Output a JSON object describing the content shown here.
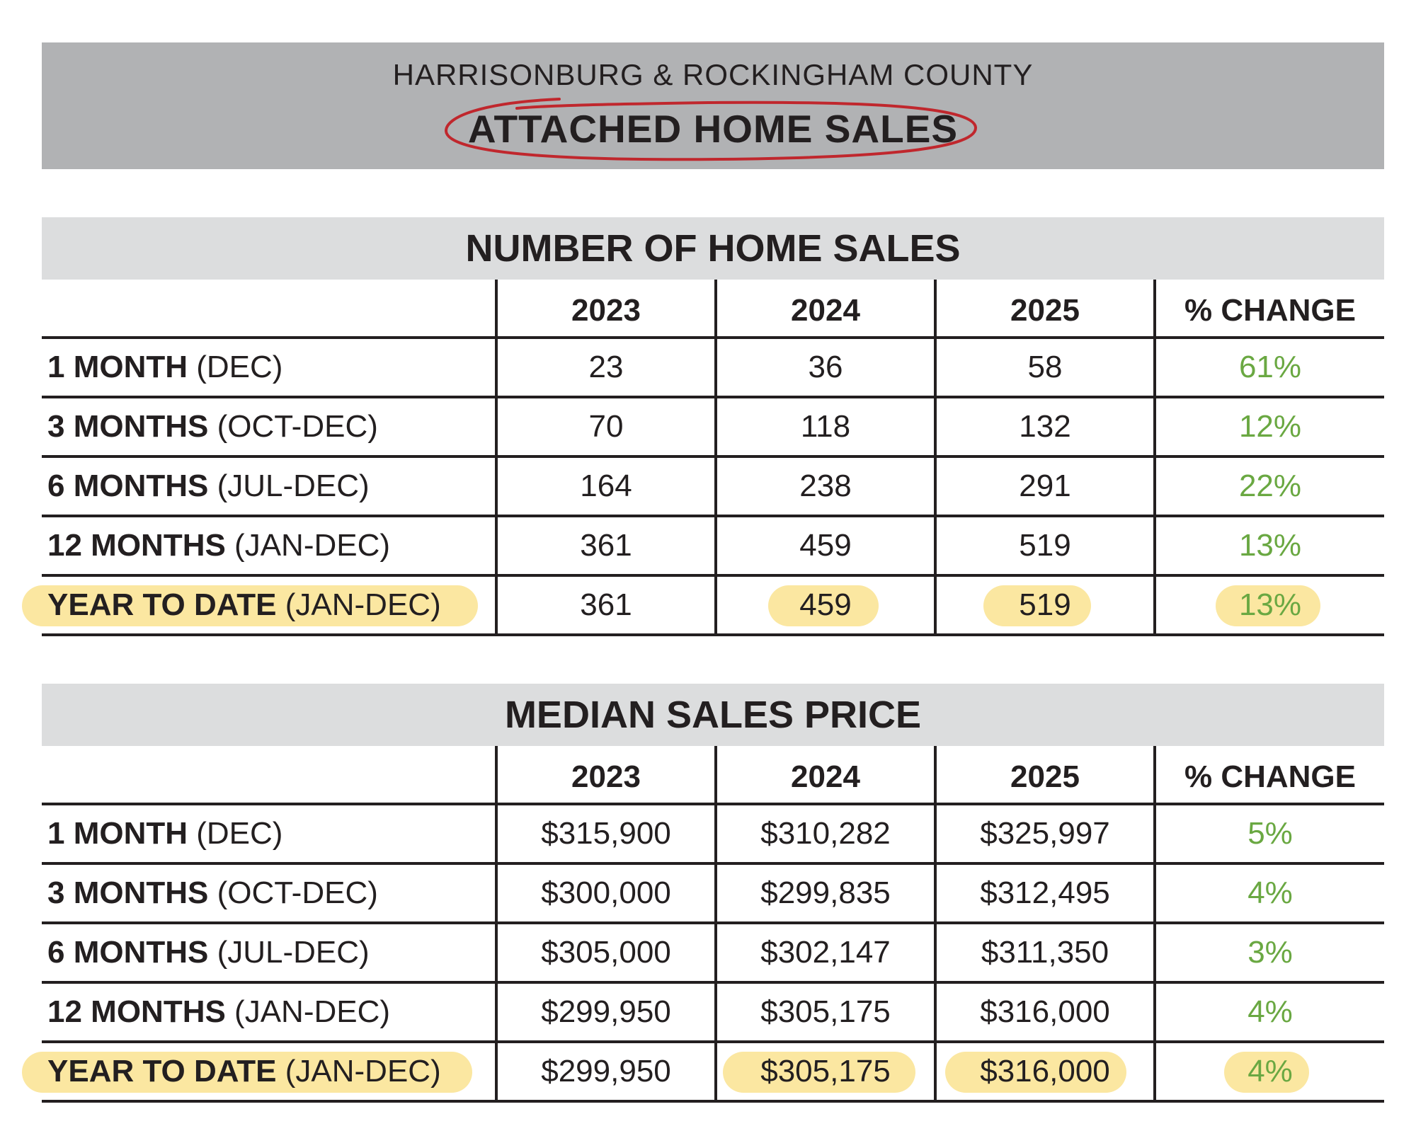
{
  "header": {
    "region": "HARRISONBURG & ROCKINGHAM COUNTY",
    "title": "ATTACHED HOME SALES"
  },
  "colors": {
    "header_band": "#b1b2b4",
    "section_band": "#dcddde",
    "positive_change": "#6aa842",
    "highlight": "#fbe7a1",
    "circle_annotation": "#c0272d"
  },
  "tables": [
    {
      "title": "NUMBER OF HOME SALES",
      "columns": [
        "2023",
        "2024",
        "2025",
        "% CHANGE"
      ],
      "rows": [
        {
          "label_bold": "1 MONTH",
          "label_rest": " (DEC)",
          "v2023": "23",
          "v2024": "36",
          "v2025": "58",
          "change": "61%"
        },
        {
          "label_bold": "3 MONTHS",
          "label_rest": " (OCT-DEC)",
          "v2023": "70",
          "v2024": "118",
          "v2025": "132",
          "change": "12%"
        },
        {
          "label_bold": "6 MONTHS",
          "label_rest": " (JUL-DEC)",
          "v2023": "164",
          "v2024": "238",
          "v2025": "291",
          "change": "22%"
        },
        {
          "label_bold": "12 MONTHS",
          "label_rest": " (JAN-DEC)",
          "v2023": "361",
          "v2024": "459",
          "v2025": "519",
          "change": "13%"
        },
        {
          "label_bold": "YEAR TO DATE",
          "label_rest": " (JAN-DEC)",
          "v2023": "361",
          "v2024": "459",
          "v2025": "519",
          "change": "13%"
        }
      ]
    },
    {
      "title": "MEDIAN SALES PRICE",
      "columns": [
        "2023",
        "2024",
        "2025",
        "% CHANGE"
      ],
      "rows": [
        {
          "label_bold": "1 MONTH",
          "label_rest": " (DEC)",
          "v2023": "$315,900",
          "v2024": "$310,282",
          "v2025": "$325,997",
          "change": "5%"
        },
        {
          "label_bold": "3 MONTHS",
          "label_rest": " (OCT-DEC)",
          "v2023": "$300,000",
          "v2024": "$299,835",
          "v2025": "$312,495",
          "change": "4%"
        },
        {
          "label_bold": "6 MONTHS",
          "label_rest": " (JUL-DEC)",
          "v2023": "$305,000",
          "v2024": "$302,147",
          "v2025": "$311,350",
          "change": "3%"
        },
        {
          "label_bold": "12 MONTHS",
          "label_rest": " (JAN-DEC)",
          "v2023": "$299,950",
          "v2024": "$305,175",
          "v2025": "$316,000",
          "change": "4%"
        },
        {
          "label_bold": "YEAR TO DATE",
          "label_rest": " (JAN-DEC)",
          "v2023": "$299,950",
          "v2024": "$305,175",
          "v2025": "$316,000",
          "change": "4%"
        }
      ]
    }
  ]
}
